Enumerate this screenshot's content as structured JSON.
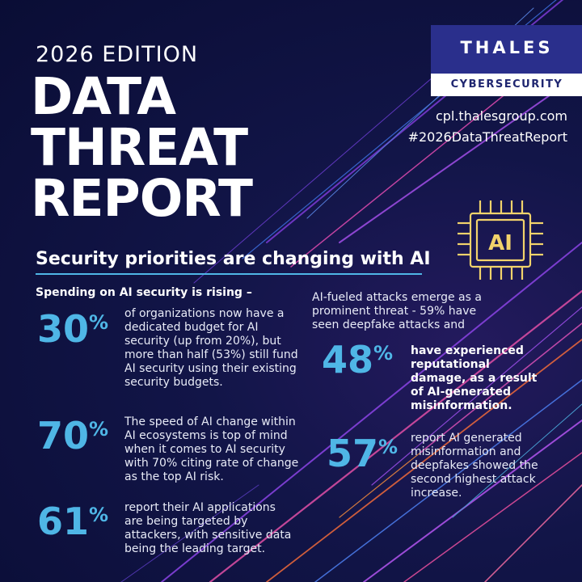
{
  "edition": "2026 EDITION",
  "title_lines": [
    "DATA",
    "THREAT",
    "REPORT"
  ],
  "brand": {
    "name": "THALES",
    "division": "CYBERSECURITY"
  },
  "url": "cpl.thalesgroup.com",
  "hashtag": "#2026DataThreatReport",
  "ai_chip_label": "AI",
  "section_title": "Security priorities are changing with AI",
  "left_subheading": "Spending on AI security is rising –",
  "stats_left": [
    {
      "value": "30",
      "unit": "%",
      "text": "of organizations now have a dedicated budget for AI security (up from 20%), but more than half (53%) still fund AI security using their existing security budgets."
    },
    {
      "value": "70",
      "unit": "%",
      "text": "The speed of AI change within AI ecosystems is top of mind when it comes to AI security with 70% citing rate of change as the top AI risk."
    },
    {
      "value": "61",
      "unit": "%",
      "text": "report their AI applications are being targeted by attackers, with sensitive data being the leading target."
    }
  ],
  "right_intro": "AI-fueled attacks emerge as a prominent threat - 59% have seen deepfake attacks and",
  "stats_right": [
    {
      "value": "48",
      "unit": "%",
      "text": "have experienced reputational damage, as a result of AI-generated misinformation."
    },
    {
      "value": "57",
      "unit": "%",
      "text": "report AI generated misinformation and deepfakes showed the second highest attack increase."
    }
  ],
  "colors": {
    "background": "#0b0f3a",
    "accent": "#4fb6e6",
    "chip": "#f2d36b",
    "logo_box": "#2a2f8c"
  }
}
